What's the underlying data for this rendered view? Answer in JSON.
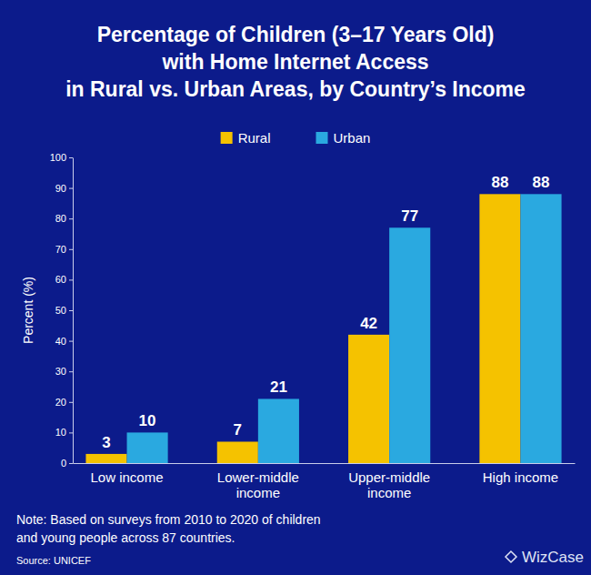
{
  "chart_data": {
    "type": "bar",
    "title": [
      "Percentage of Children (3–17 Years Old)",
      "with Home Internet Access",
      "in Rural vs. Urban Areas, by Country’s Income"
    ],
    "categories": [
      "Low income",
      "Lower-middle income",
      "Upper-middle income",
      "High income"
    ],
    "series": [
      {
        "name": "Rural",
        "color": "#f5c200",
        "values": [
          3,
          7,
          42,
          88
        ]
      },
      {
        "name": "Urban",
        "color": "#2aa9e0",
        "values": [
          10,
          21,
          77,
          88
        ]
      }
    ],
    "ylabel": "Percent (%)",
    "ylim": [
      0,
      100
    ],
    "yticks": [
      0,
      10,
      20,
      30,
      40,
      50,
      60,
      70,
      80,
      90,
      100
    ],
    "grid": false,
    "legend": "top",
    "data_labels": true,
    "note": [
      "Note: Based on surveys from 2010 to 2020 of children",
      "and young people across 87 countries."
    ],
    "source": "Source: UNICEF",
    "credit": "WizCase"
  }
}
